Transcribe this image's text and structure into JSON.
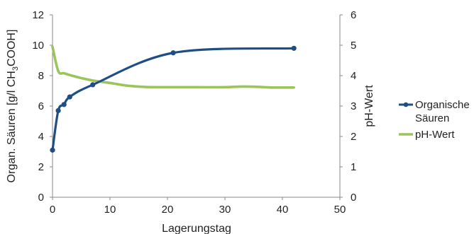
{
  "chart_data": {
    "type": "line",
    "title": "",
    "xlabel": "Lagerungstag",
    "ylabel": "Organ. Säuren [g/l CH",
    "ylabel_sub": "3",
    "ylabel_end": "COOH]",
    "y2label": "pH-Wert",
    "xlim": [
      0,
      50
    ],
    "ylim": [
      0,
      12
    ],
    "y2lim": [
      0,
      6
    ],
    "x_ticks": [
      "0",
      "10",
      "20",
      "30",
      "40",
      "50"
    ],
    "y_ticks": [
      "0",
      "2",
      "4",
      "6",
      "8",
      "10",
      "12"
    ],
    "y2_ticks": [
      "0",
      "1",
      "2",
      "3",
      "4",
      "5",
      "6"
    ],
    "grid": false,
    "legend_position": "right",
    "series": [
      {
        "name": "Organische Säuren",
        "name_line1": "Organische",
        "name_line2": "Säuren",
        "axis": "left",
        "color": "#1f4e82",
        "markers": true,
        "x": [
          0,
          1,
          2,
          3,
          7,
          21,
          42
        ],
        "y": [
          3.1,
          5.7,
          6.1,
          6.6,
          7.4,
          9.5,
          9.8
        ]
      },
      {
        "name": "pH-Wert",
        "axis": "right",
        "color": "#9bc45a",
        "markers": false,
        "x": [
          0,
          1,
          2,
          3,
          5,
          7,
          10,
          13,
          16,
          20,
          25,
          30,
          33,
          36,
          38,
          42
        ],
        "y": [
          4.95,
          4.15,
          4.08,
          4.02,
          3.92,
          3.84,
          3.76,
          3.67,
          3.63,
          3.62,
          3.62,
          3.62,
          3.64,
          3.63,
          3.61,
          3.61
        ]
      }
    ]
  }
}
